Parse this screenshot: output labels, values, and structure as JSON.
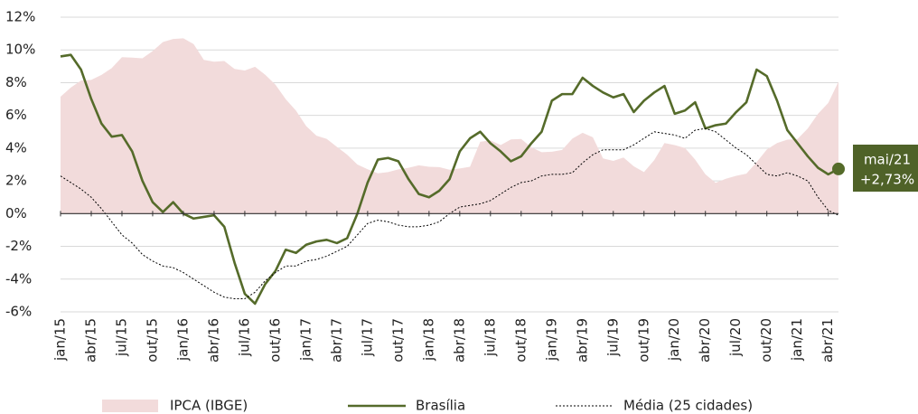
{
  "chart_data": {
    "type": "line",
    "categories": [
      "jan/15",
      null,
      null,
      "abr/15",
      null,
      null,
      "jul/15",
      null,
      null,
      "out/15",
      null,
      null,
      "jan/16",
      null,
      null,
      "abr/16",
      null,
      null,
      "jul/16",
      null,
      null,
      "out/16",
      null,
      null,
      "jan/17",
      null,
      null,
      "abr/17",
      null,
      null,
      "jul/17",
      null,
      null,
      "out/17",
      null,
      null,
      "jan/18",
      null,
      null,
      "abr/18",
      null,
      null,
      "jul/18",
      null,
      null,
      "out/18",
      null,
      null,
      "jan/19",
      null,
      null,
      "abr/19",
      null,
      null,
      "jul/19",
      null,
      null,
      "out/19",
      null,
      null,
      "jan/20",
      null,
      null,
      "abr/20",
      null,
      null,
      "jul/20",
      null,
      null,
      "out/20",
      null,
      null,
      "jan/21",
      null,
      null,
      "abr/21",
      null
    ],
    "series": [
      {
        "name": "IPCA (IBGE)",
        "kind": "area",
        "color": "#f2dbdb",
        "values": [
          7.14,
          7.7,
          8.13,
          8.17,
          8.47,
          8.89,
          9.56,
          9.53,
          9.49,
          9.93,
          10.48,
          10.67,
          10.71,
          10.36,
          9.39,
          9.28,
          9.32,
          8.84,
          8.74,
          8.97,
          8.48,
          7.87,
          6.99,
          6.29,
          5.35,
          4.76,
          4.57,
          4.08,
          3.6,
          3.0,
          2.71,
          2.46,
          2.54,
          2.7,
          2.8,
          2.95,
          2.86,
          2.84,
          2.68,
          2.76,
          2.86,
          4.39,
          4.48,
          4.19,
          4.53,
          4.56,
          4.05,
          3.75,
          3.78,
          3.89,
          4.58,
          4.94,
          4.66,
          3.37,
          3.22,
          3.43,
          2.89,
          2.54,
          3.27,
          4.31,
          4.19,
          4.01,
          3.3,
          2.4,
          1.88,
          2.13,
          2.31,
          2.44,
          3.14,
          3.92,
          4.31,
          4.52,
          4.56,
          5.2,
          6.1,
          6.76,
          8.06
        ]
      },
      {
        "name": "Brasília",
        "kind": "line",
        "color": "#556b2a",
        "values": [
          9.6,
          9.7,
          8.8,
          7.0,
          5.5,
          4.7,
          4.8,
          3.8,
          2.0,
          0.7,
          0.1,
          0.7,
          0.0,
          -0.3,
          -0.2,
          -0.1,
          -0.8,
          -3.0,
          -4.9,
          -5.5,
          -4.3,
          -3.5,
          -2.2,
          -2.4,
          -1.9,
          -1.7,
          -1.6,
          -1.8,
          -1.5,
          0.0,
          1.9,
          3.3,
          3.4,
          3.2,
          2.1,
          1.2,
          1.0,
          1.4,
          2.1,
          3.8,
          4.6,
          5.0,
          4.3,
          3.8,
          3.2,
          3.5,
          4.3,
          5.0,
          6.9,
          7.3,
          7.3,
          8.3,
          7.8,
          7.4,
          7.1,
          7.3,
          6.2,
          6.9,
          7.4,
          7.8,
          6.1,
          6.3,
          6.8,
          5.2,
          5.4,
          5.5,
          6.2,
          6.8,
          8.8,
          8.4,
          6.9,
          5.1,
          4.3,
          3.5,
          2.8,
          2.4,
          2.73
        ]
      },
      {
        "name": "Média (25 cidades)",
        "kind": "dotted",
        "color": "#000000",
        "values": [
          2.3,
          1.9,
          1.5,
          1.0,
          0.3,
          -0.5,
          -1.3,
          -1.8,
          -2.5,
          -2.9,
          -3.2,
          -3.3,
          -3.6,
          -4.0,
          -4.4,
          -4.8,
          -5.1,
          -5.2,
          -5.2,
          -4.8,
          -4.1,
          -3.6,
          -3.2,
          -3.2,
          -2.9,
          -2.8,
          -2.6,
          -2.3,
          -2.0,
          -1.3,
          -0.6,
          -0.4,
          -0.5,
          -0.7,
          -0.8,
          -0.8,
          -0.7,
          -0.5,
          0.0,
          0.4,
          0.5,
          0.6,
          0.8,
          1.2,
          1.6,
          1.9,
          2.0,
          2.3,
          2.4,
          2.4,
          2.5,
          3.1,
          3.6,
          3.9,
          3.9,
          3.9,
          4.2,
          4.6,
          5.0,
          4.9,
          4.8,
          4.6,
          5.1,
          5.2,
          5.0,
          4.5,
          4.0,
          3.6,
          3.0,
          2.4,
          2.3,
          2.5,
          2.3,
          2.0,
          1.0,
          0.2,
          -0.1
        ]
      }
    ],
    "annotation": [
      "mai/21",
      "+2,73%"
    ],
    "ylim": [
      -6,
      12
    ],
    "yticks": [
      {
        "value": -6,
        "label": "-6%"
      },
      {
        "value": -4,
        "label": "-4%"
      },
      {
        "value": -2,
        "label": "-2%"
      },
      {
        "value": 0,
        "label": "0%"
      },
      {
        "value": 2,
        "label": "2%"
      },
      {
        "value": 4,
        "label": "4%"
      },
      {
        "value": 6,
        "label": "6%"
      },
      {
        "value": 8,
        "label": "8%"
      },
      {
        "value": 10,
        "label": "10%"
      },
      {
        "value": 12,
        "label": "12%"
      }
    ],
    "grid": true
  }
}
